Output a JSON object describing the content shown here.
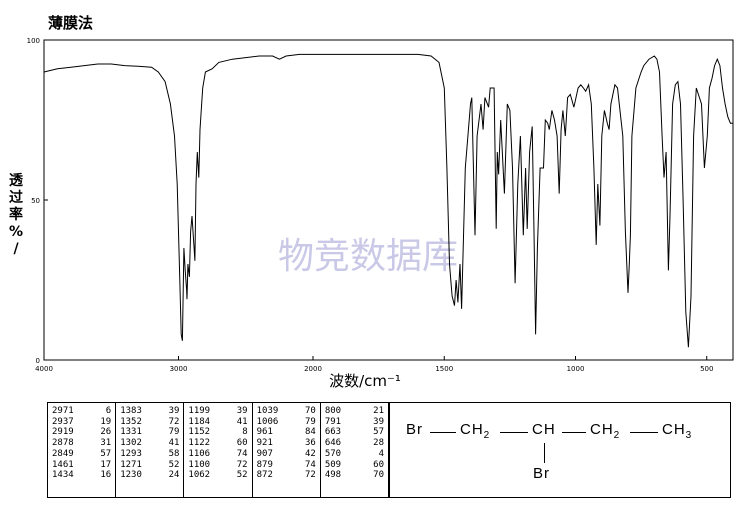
{
  "header": {
    "title": "薄膜法"
  },
  "watermark": "物竞数据库",
  "chart_data": {
    "type": "line",
    "title": "薄膜法",
    "xlabel": "波数/cm⁻¹",
    "ylabel": "透过率%/",
    "xlim": [
      4000,
      400
    ],
    "ylim": [
      0,
      100
    ],
    "x_ticks": [
      "4000",
      "3000",
      "2000",
      "1500",
      "1000",
      "500"
    ],
    "y_ticks": [
      "0",
      "50",
      "100"
    ],
    "line_color": "#000000",
    "series": [
      {
        "points": [
          [
            4000,
            90
          ],
          [
            3900,
            91
          ],
          [
            3800,
            91.5
          ],
          [
            3700,
            92
          ],
          [
            3600,
            92.5
          ],
          [
            3500,
            92.5
          ],
          [
            3400,
            92
          ],
          [
            3300,
            91.8
          ],
          [
            3200,
            91.5
          ],
          [
            3150,
            90
          ],
          [
            3100,
            87
          ],
          [
            3060,
            80
          ],
          [
            3030,
            70
          ],
          [
            3010,
            55
          ],
          [
            2990,
            25
          ],
          [
            2980,
            8
          ],
          [
            2971,
            6
          ],
          [
            2960,
            35
          ],
          [
            2950,
            28
          ],
          [
            2940,
            22
          ],
          [
            2937,
            19
          ],
          [
            2930,
            30
          ],
          [
            2919,
            26
          ],
          [
            2910,
            40
          ],
          [
            2900,
            45
          ],
          [
            2878,
            31
          ],
          [
            2870,
            55
          ],
          [
            2860,
            65
          ],
          [
            2849,
            57
          ],
          [
            2840,
            72
          ],
          [
            2820,
            85
          ],
          [
            2800,
            90
          ],
          [
            2750,
            91
          ],
          [
            2700,
            93
          ],
          [
            2600,
            94
          ],
          [
            2500,
            94.5
          ],
          [
            2400,
            95
          ],
          [
            2300,
            95
          ],
          [
            2250,
            94
          ],
          [
            2200,
            95
          ],
          [
            2100,
            95.5
          ],
          [
            2000,
            95.5
          ],
          [
            1900,
            95.5
          ],
          [
            1800,
            95.5
          ],
          [
            1700,
            95.5
          ],
          [
            1600,
            95.5
          ],
          [
            1550,
            95
          ],
          [
            1520,
            93
          ],
          [
            1500,
            85
          ],
          [
            1490,
            60
          ],
          [
            1480,
            30
          ],
          [
            1470,
            20
          ],
          [
            1461,
            17
          ],
          [
            1455,
            25
          ],
          [
            1448,
            18
          ],
          [
            1440,
            30
          ],
          [
            1434,
            16
          ],
          [
            1420,
            60
          ],
          [
            1400,
            80
          ],
          [
            1395,
            82
          ],
          [
            1383,
            39
          ],
          [
            1375,
            70
          ],
          [
            1360,
            80
          ],
          [
            1352,
            72
          ],
          [
            1345,
            82
          ],
          [
            1331,
            79
          ],
          [
            1325,
            85
          ],
          [
            1310,
            85
          ],
          [
            1302,
            41
          ],
          [
            1298,
            65
          ],
          [
            1293,
            58
          ],
          [
            1285,
            75
          ],
          [
            1271,
            52
          ],
          [
            1260,
            80
          ],
          [
            1250,
            78
          ],
          [
            1240,
            60
          ],
          [
            1230,
            24
          ],
          [
            1220,
            55
          ],
          [
            1210,
            70
          ],
          [
            1199,
            39
          ],
          [
            1190,
            60
          ],
          [
            1184,
            41
          ],
          [
            1175,
            65
          ],
          [
            1165,
            73
          ],
          [
            1158,
            40
          ],
          [
            1152,
            8
          ],
          [
            1145,
            35
          ],
          [
            1135,
            60
          ],
          [
            1122,
            60
          ],
          [
            1115,
            75
          ],
          [
            1106,
            74
          ],
          [
            1100,
            72
          ],
          [
            1090,
            78
          ],
          [
            1080,
            75
          ],
          [
            1070,
            70
          ],
          [
            1062,
            52
          ],
          [
            1055,
            72
          ],
          [
            1048,
            78
          ],
          [
            1039,
            70
          ],
          [
            1030,
            82
          ],
          [
            1020,
            83
          ],
          [
            1006,
            79
          ],
          [
            990,
            85
          ],
          [
            980,
            86
          ],
          [
            970,
            85
          ],
          [
            961,
            84
          ],
          [
            950,
            86
          ],
          [
            940,
            80
          ],
          [
            930,
            60
          ],
          [
            921,
            36
          ],
          [
            915,
            55
          ],
          [
            907,
            42
          ],
          [
            900,
            70
          ],
          [
            890,
            78
          ],
          [
            879,
            74
          ],
          [
            872,
            72
          ],
          [
            865,
            80
          ],
          [
            850,
            86
          ],
          [
            840,
            85
          ],
          [
            820,
            70
          ],
          [
            810,
            40
          ],
          [
            800,
            21
          ],
          [
            795,
            30
          ],
          [
            791,
            39
          ],
          [
            785,
            70
          ],
          [
            770,
            85
          ],
          [
            750,
            90
          ],
          [
            740,
            92
          ],
          [
            720,
            94
          ],
          [
            700,
            95
          ],
          [
            690,
            94
          ],
          [
            680,
            90
          ],
          [
            670,
            70
          ],
          [
            663,
            57
          ],
          [
            655,
            65
          ],
          [
            646,
            28
          ],
          [
            640,
            45
          ],
          [
            630,
            80
          ],
          [
            620,
            86
          ],
          [
            610,
            87
          ],
          [
            600,
            80
          ],
          [
            590,
            50
          ],
          [
            580,
            15
          ],
          [
            570,
            4
          ],
          [
            560,
            20
          ],
          [
            550,
            70
          ],
          [
            540,
            85
          ],
          [
            520,
            80
          ],
          [
            509,
            60
          ],
          [
            498,
            70
          ],
          [
            490,
            85
          ],
          [
            480,
            88
          ],
          [
            470,
            92
          ],
          [
            460,
            94
          ],
          [
            450,
            92
          ],
          [
            440,
            85
          ],
          [
            430,
            80
          ],
          [
            420,
            76
          ],
          [
            410,
            74
          ],
          [
            400,
            74
          ]
        ]
      }
    ]
  },
  "peak_table": {
    "columns": [
      [
        [
          "2971",
          "6"
        ],
        [
          "2937",
          "19"
        ],
        [
          "2919",
          "26"
        ],
        [
          "2878",
          "31"
        ],
        [
          "2849",
          "57"
        ],
        [
          "1461",
          "17"
        ],
        [
          "1434",
          "16"
        ]
      ],
      [
        [
          "1383",
          "39"
        ],
        [
          "1352",
          "72"
        ],
        [
          "1331",
          "79"
        ],
        [
          "1302",
          "41"
        ],
        [
          "1293",
          "58"
        ],
        [
          "1271",
          "52"
        ],
        [
          "1230",
          "24"
        ]
      ],
      [
        [
          "1199",
          "39"
        ],
        [
          "1184",
          "41"
        ],
        [
          "1152",
          "8"
        ],
        [
          "1122",
          "60"
        ],
        [
          "1106",
          "74"
        ],
        [
          "1100",
          "72"
        ],
        [
          "1062",
          "52"
        ]
      ],
      [
        [
          "1039",
          "70"
        ],
        [
          "1006",
          "79"
        ],
        [
          "961",
          "84"
        ],
        [
          "921",
          "36"
        ],
        [
          "907",
          "42"
        ],
        [
          "879",
          "74"
        ],
        [
          "872",
          "72"
        ]
      ],
      [
        [
          "800",
          "21"
        ],
        [
          "791",
          "39"
        ],
        [
          "663",
          "57"
        ],
        [
          "646",
          "28"
        ],
        [
          "570",
          "4"
        ],
        [
          "509",
          "60"
        ],
        [
          "498",
          "70"
        ]
      ]
    ]
  },
  "structure": {
    "br_left": "Br",
    "ch2_left": "CH",
    "ch2_left_sub": "2",
    "ch": "CH",
    "ch2_right": "CH",
    "ch2_right_sub": "2",
    "ch3": "CH",
    "ch3_sub": "3",
    "br_bottom": "Br"
  }
}
